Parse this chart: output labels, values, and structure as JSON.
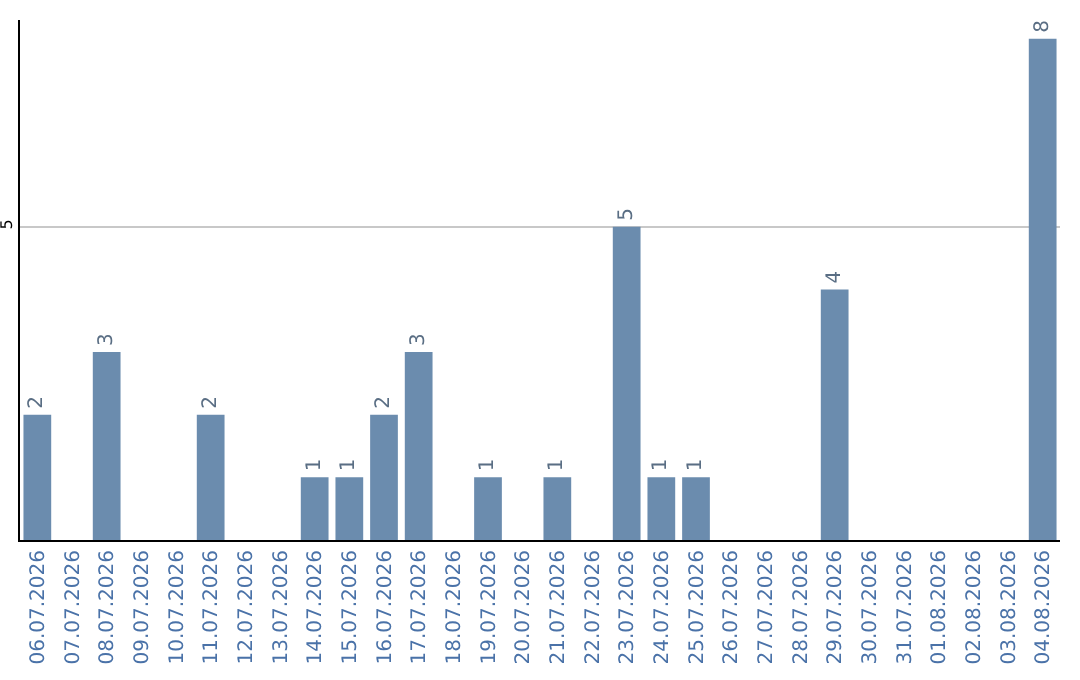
{
  "chart_data": {
    "type": "bar",
    "categories": [
      "06.07.2026",
      "07.07.2026",
      "08.07.2026",
      "09.07.2026",
      "10.07.2026",
      "11.07.2026",
      "12.07.2026",
      "13.07.2026",
      "14.07.2026",
      "15.07.2026",
      "16.07.2026",
      "17.07.2026",
      "18.07.2026",
      "19.07.2026",
      "20.07.2026",
      "21.07.2026",
      "22.07.2026",
      "23.07.2026",
      "24.07.2026",
      "25.07.2026",
      "26.07.2026",
      "27.07.2026",
      "28.07.2026",
      "29.07.2026",
      "30.07.2026",
      "31.07.2026",
      "01.08.2026",
      "02.08.2026",
      "03.08.2026",
      "04.08.2026"
    ],
    "values": [
      2,
      null,
      3,
      null,
      null,
      2,
      null,
      null,
      1,
      1,
      2,
      3,
      null,
      1,
      null,
      1,
      null,
      5,
      1,
      1,
      null,
      null,
      null,
      4,
      null,
      null,
      null,
      null,
      null,
      8
    ],
    "color": "#6b8cae",
    "ylim": [
      0,
      8.3
    ],
    "yticks": [
      5
    ],
    "grid": "y",
    "data_labels": true
  }
}
